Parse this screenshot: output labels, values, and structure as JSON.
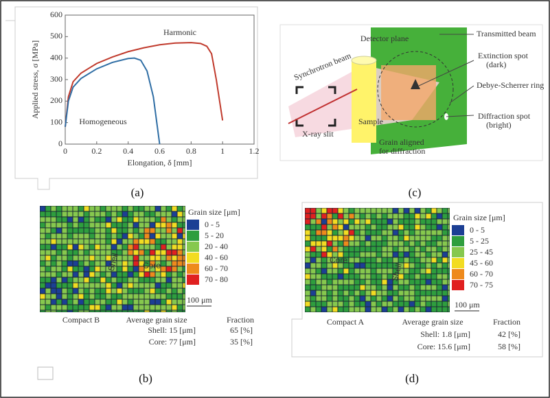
{
  "chart_data": {
    "type": "line",
    "xlabel": "Elongation, δ [mm]",
    "ylabel": "Applied stress, σ [MPa]",
    "xlim": [
      0,
      1.2
    ],
    "ylim": [
      0,
      600
    ],
    "xticks": [
      0,
      0.2,
      0.4,
      0.6,
      0.8,
      1,
      1.2
    ],
    "yticks": [
      0,
      100,
      200,
      300,
      400,
      500,
      600
    ],
    "series": [
      {
        "name": "Harmonic",
        "color": "#c0392b",
        "x": [
          0,
          0.02,
          0.05,
          0.1,
          0.2,
          0.3,
          0.4,
          0.5,
          0.6,
          0.7,
          0.8,
          0.86,
          0.9,
          0.93,
          0.96,
          1.0
        ],
        "values": [
          80,
          220,
          290,
          330,
          375,
          405,
          430,
          448,
          462,
          470,
          472,
          468,
          455,
          420,
          300,
          110
        ]
      },
      {
        "name": "Homogeneous",
        "color": "#2e6da4",
        "x": [
          0,
          0.02,
          0.05,
          0.1,
          0.2,
          0.3,
          0.4,
          0.44,
          0.48,
          0.52,
          0.56,
          0.6
        ],
        "values": [
          80,
          200,
          265,
          305,
          350,
          380,
          398,
          400,
          390,
          340,
          220,
          0
        ]
      }
    ]
  },
  "captions": [
    "(a)",
    "(b)",
    "(c)",
    "(d)"
  ],
  "diagram": {
    "detector_plane": "Detector plane",
    "transmitted_beam": "Transmitted beam",
    "synchrotron_beam": "Synchrotron beam",
    "extinction_spot": [
      "Extinction spot",
      "(dark)"
    ],
    "debye_ring": "Debye-Scherrer ring",
    "sample": "Sample",
    "xray_slit": "X-ray slit",
    "grain_aligned": [
      "Grain aligned",
      "for diffraction"
    ],
    "diffraction_spot": [
      "Diffraction spot",
      "(bright)"
    ]
  },
  "maps": [
    {
      "legend_title": "Grain size [μm]",
      "legend": [
        {
          "color": "#1c3f94",
          "range": "0 - 5"
        },
        {
          "color": "#2e9e3e",
          "range": "5 - 20"
        },
        {
          "color": "#86c84e",
          "range": "20 - 40"
        },
        {
          "color": "#f2dc22",
          "range": "40 - 60"
        },
        {
          "color": "#ee8a1c",
          "range": "60 - 70"
        },
        {
          "color": "#e02020",
          "range": "70 - 80"
        }
      ],
      "core_label": "Core",
      "shell_label": "Shell",
      "scale": "100 μm",
      "table": {
        "name": "Compact B",
        "head": [
          "Average grain size",
          "Fraction"
        ],
        "rows": [
          [
            "Shell: 15 [μm]",
            "65 [%]"
          ],
          [
            "Core: 77 [μm]",
            "35 [%]"
          ]
        ]
      }
    },
    {
      "legend_title": "Grain size [μm]",
      "legend": [
        {
          "color": "#1c3f94",
          "range": "0 - 5"
        },
        {
          "color": "#2e9e3e",
          "range": "5 - 25"
        },
        {
          "color": "#86c84e",
          "range": "25 - 45"
        },
        {
          "color": "#f2dc22",
          "range": "45 - 60"
        },
        {
          "color": "#ee8a1c",
          "range": "60 - 70"
        },
        {
          "color": "#e02020",
          "range": "70 - 75"
        }
      ],
      "core_label": "Core",
      "shell_label": "Shell",
      "scale": "100 μm",
      "table": {
        "name": "Compact A",
        "head": [
          "Average grain size",
          "Fraction"
        ],
        "rows": [
          [
            "Shell: 1.8 [μm]",
            "42 [%]"
          ],
          [
            "Core: 15.6 [μm]",
            "58 [%]"
          ]
        ]
      }
    }
  ]
}
